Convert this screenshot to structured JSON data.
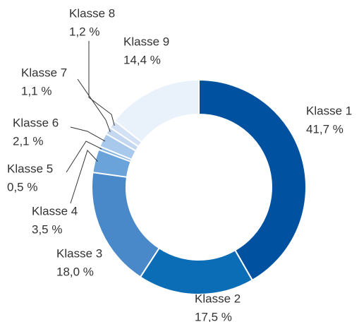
{
  "chart_data": {
    "type": "donut",
    "categories": [
      "Klasse 1",
      "Klasse 2",
      "Klasse 3",
      "Klasse 4",
      "Klasse 5",
      "Klasse 6",
      "Klasse 7",
      "Klasse 8",
      "Klasse 9"
    ],
    "values": [
      41.7,
      17.5,
      18.0,
      3.5,
      0.5,
      2.1,
      1.1,
      1.2,
      14.4
    ],
    "value_labels": [
      "41,7 %",
      "17,5 %",
      "18,0 %",
      "3,5 %",
      "0,5 %",
      "2,1 %",
      "1,1 %",
      "1,2 %",
      "14,4 %"
    ],
    "colors": [
      "#0052a0",
      "#0b6db5",
      "#4a89c9",
      "#6aa2da",
      "#86b4e2",
      "#a9c9ec",
      "#c3d7f0",
      "#d3e1f4",
      "#e9f1fa"
    ]
  }
}
